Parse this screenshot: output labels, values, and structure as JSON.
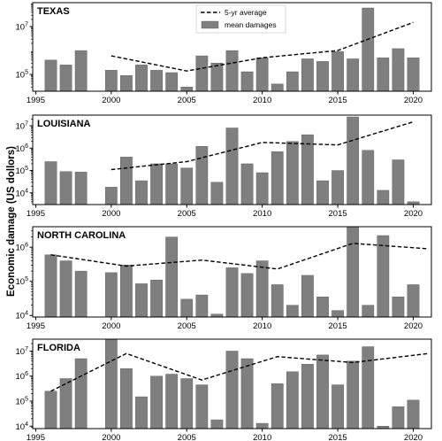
{
  "ylabel": "Economic damage (US dollors)",
  "legend": {
    "avg_label": "5-yr average",
    "bar_label": "mean damages"
  },
  "colors": {
    "bar": "#7f7f7f",
    "bar_edge": "#555555",
    "avg_line": "#000000"
  },
  "chart_data": [
    {
      "type": "bar",
      "title": "TEXAS",
      "x_ticks": [
        1995,
        2000,
        2005,
        2010,
        2015,
        2020
      ],
      "y_scale": "log",
      "y_ticks": [
        {
          "v": 100000,
          "label": "10^5"
        },
        {
          "v": 10000000,
          "label": "10^7"
        }
      ],
      "ylim": [
        20000,
        100000000
      ],
      "years": [
        1996,
        1997,
        1998,
        2000,
        2001,
        2002,
        2003,
        2004,
        2005,
        2006,
        2007,
        2008,
        2009,
        2010,
        2011,
        2012,
        2013,
        2014,
        2015,
        2016,
        2017,
        2018,
        2019,
        2020
      ],
      "values": [
        400000,
        250000,
        1000000,
        150000,
        90000,
        250000,
        150000,
        120000,
        30000,
        600000,
        300000,
        1000000,
        130000,
        500000,
        40000,
        130000,
        450000,
        350000,
        900000,
        450000,
        60000000,
        500000,
        1200000,
        500000
      ],
      "avg_years": [
        2000,
        2005,
        2010,
        2015,
        2020
      ],
      "avg_values": [
        600000,
        140000,
        500000,
        1000000,
        15000000
      ]
    },
    {
      "type": "bar",
      "title": "LOUISIANA",
      "x_ticks": [
        1995,
        2000,
        2005,
        2010,
        2015,
        2020
      ],
      "y_scale": "log",
      "y_ticks": [
        {
          "v": 10000,
          "label": "10^4"
        },
        {
          "v": 100000,
          "label": "10^5"
        },
        {
          "v": 1000000,
          "label": "10^6"
        },
        {
          "v": 10000000,
          "label": "10^7"
        }
      ],
      "ylim": [
        3000,
        30000000
      ],
      "years": [
        1996,
        1997,
        1998,
        2000,
        2001,
        2002,
        2003,
        2004,
        2005,
        2006,
        2007,
        2008,
        2009,
        2010,
        2011,
        2012,
        2013,
        2014,
        2015,
        2016,
        2017,
        2018,
        2019,
        2020
      ],
      "values": [
        250000,
        90000,
        85000,
        18000,
        400000,
        35000,
        200000,
        200000,
        130000,
        1200000,
        30000,
        8000000,
        200000,
        80000,
        700000,
        2000000,
        4000000,
        35000,
        100000,
        25000000,
        800000,
        13000,
        300000,
        4000
      ],
      "avg_years": [
        2000,
        2005,
        2010,
        2015,
        2020
      ],
      "avg_values": [
        110000,
        250000,
        1800000,
        1400000,
        15000000
      ]
    },
    {
      "type": "bar",
      "title": "NORTH CAROLINA",
      "x_ticks": [
        1995,
        2000,
        2005,
        2010,
        2015,
        2020
      ],
      "y_scale": "log",
      "y_ticks": [
        {
          "v": 10000,
          "label": "10^4"
        },
        {
          "v": 100000,
          "label": "10^5"
        },
        {
          "v": 1000000,
          "label": "10^6"
        }
      ],
      "ylim": [
        9000,
        4000000
      ],
      "years": [
        1996,
        1997,
        1998,
        2000,
        2001,
        2002,
        2003,
        2004,
        2005,
        2006,
        2007,
        2008,
        2009,
        2010,
        2011,
        2012,
        2013,
        2014,
        2015,
        2016,
        2017,
        2018,
        2019,
        2020
      ],
      "values": [
        600000,
        400000,
        200000,
        180000,
        300000,
        85000,
        110000,
        2000000,
        30000,
        40000,
        11000,
        250000,
        170000,
        400000,
        80000,
        20000,
        150000,
        35000,
        14000,
        4000000,
        20000,
        2200000,
        35000,
        80000
      ],
      "avg_years": [
        1996,
        2001,
        2006,
        2011,
        2016,
        2021
      ],
      "avg_values": [
        600000,
        280000,
        420000,
        230000,
        1300000,
        900000
      ]
    },
    {
      "type": "bar",
      "title": "FLORIDA",
      "x_ticks": [
        1995,
        2000,
        2005,
        2010,
        2015,
        2020
      ],
      "y_scale": "log",
      "y_ticks": [
        {
          "v": 10000,
          "label": "10^4"
        },
        {
          "v": 100000,
          "label": "10^5"
        },
        {
          "v": 1000000,
          "label": "10^6"
        },
        {
          "v": 10000000,
          "label": "10^7"
        }
      ],
      "ylim": [
        8000,
        30000000
      ],
      "years": [
        1996,
        1997,
        1998,
        2000,
        2001,
        2002,
        2003,
        2004,
        2005,
        2006,
        2007,
        2008,
        2009,
        2010,
        2011,
        2012,
        2013,
        2014,
        2015,
        2016,
        2017,
        2018,
        2019,
        2020
      ],
      "values": [
        250000,
        800000,
        5000000,
        30000000,
        2000000,
        150000,
        1000000,
        1200000,
        800000,
        450000,
        18000,
        10000000,
        5000000,
        13000,
        500000,
        1500000,
        3000000,
        7000000,
        450000,
        4000000,
        15000000,
        10000,
        60000,
        110000
      ],
      "avg_years": [
        1996,
        2001,
        2006,
        2011,
        2016,
        2021
      ],
      "avg_values": [
        250000,
        8000000,
        700000,
        6000000,
        3500000,
        8000000
      ]
    }
  ]
}
